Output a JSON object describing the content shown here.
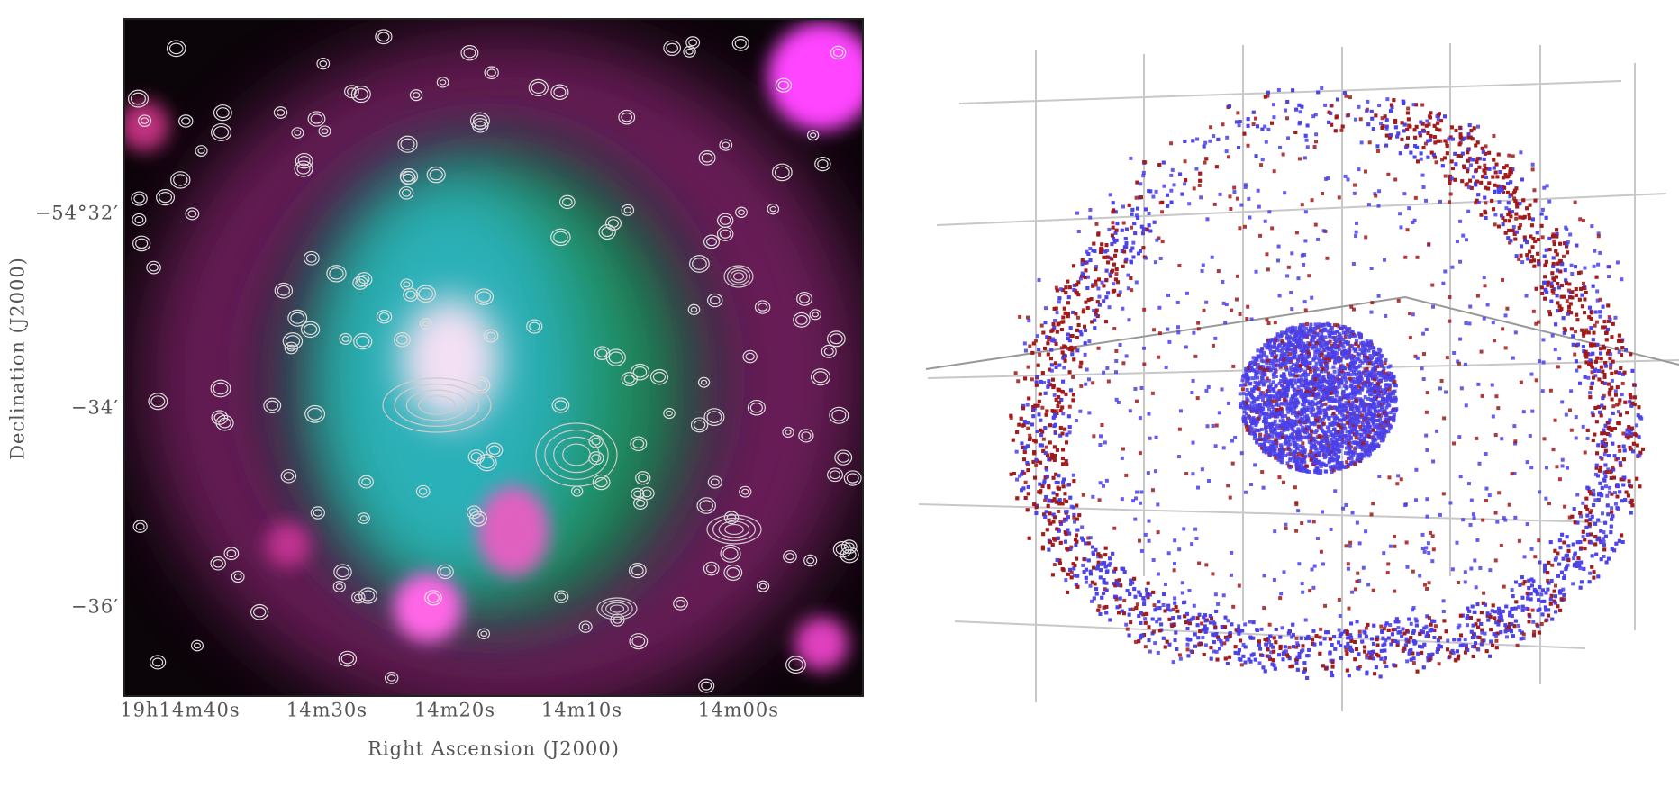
{
  "left_panel": {
    "x_axis": {
      "title": "Right Ascension (J2000)",
      "ticks": [
        "19h14m40s",
        "14m30s",
        "14m20s",
        "14m10s",
        "14m00s"
      ]
    },
    "y_axis": {
      "title": "Declination (J2000)",
      "ticks": [
        "−54°32′",
        "−34′",
        "−36′"
      ]
    }
  }
}
